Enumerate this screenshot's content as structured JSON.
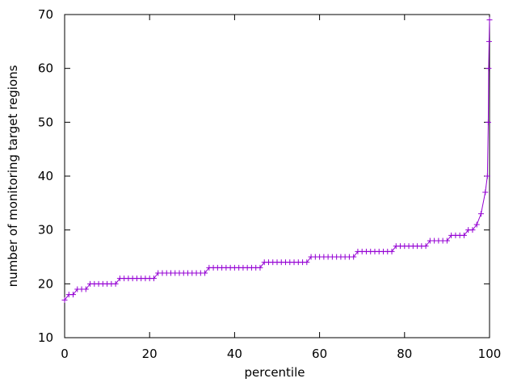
{
  "chart_data": {
    "type": "linepoints",
    "xlabel": "percentile",
    "ylabel": "number of monitoring target regions",
    "color": "#9400d3",
    "xlim": [
      0,
      100
    ],
    "xticks": [
      0,
      20,
      40,
      60,
      80,
      100
    ],
    "ylim": [
      10,
      70
    ],
    "yticks": [
      10,
      20,
      30,
      40,
      50,
      60,
      70
    ],
    "grid": false,
    "x": [
      0,
      1,
      2,
      3,
      4,
      5,
      6,
      7,
      8,
      9,
      10,
      11,
      12,
      13,
      14,
      15,
      16,
      17,
      18,
      19,
      20,
      21,
      22,
      23,
      24,
      25,
      26,
      27,
      28,
      29,
      30,
      31,
      32,
      33,
      34,
      35,
      36,
      37,
      38,
      39,
      40,
      41,
      42,
      43,
      44,
      45,
      46,
      47,
      48,
      49,
      50,
      51,
      52,
      53,
      54,
      55,
      56,
      57,
      58,
      59,
      60,
      61,
      62,
      63,
      64,
      65,
      66,
      67,
      68,
      69,
      70,
      71,
      72,
      73,
      74,
      75,
      76,
      77,
      78,
      79,
      80,
      81,
      82,
      83,
      84,
      85,
      86,
      87,
      88,
      89,
      90,
      91,
      92,
      93,
      94,
      95,
      96,
      97,
      98,
      99,
      99.5,
      99.7,
      99.8,
      99.9,
      100
    ],
    "values": [
      17,
      18,
      18,
      19,
      19,
      19,
      20,
      20,
      20,
      20,
      20,
      20,
      20,
      21,
      21,
      21,
      21,
      21,
      21,
      21,
      21,
      21,
      22,
      22,
      22,
      22,
      22,
      22,
      22,
      22,
      22,
      22,
      22,
      22,
      23,
      23,
      23,
      23,
      23,
      23,
      23,
      23,
      23,
      23,
      23,
      23,
      23,
      24,
      24,
      24,
      24,
      24,
      24,
      24,
      24,
      24,
      24,
      24,
      25,
      25,
      25,
      25,
      25,
      25,
      25,
      25,
      25,
      25,
      25,
      26,
      26,
      26,
      26,
      26,
      26,
      26,
      26,
      26,
      27,
      27,
      27,
      27,
      27,
      27,
      27,
      27,
      28,
      28,
      28,
      28,
      28,
      29,
      29,
      29,
      29,
      30,
      30,
      31,
      33,
      37,
      40,
      50,
      60,
      65,
      69
    ]
  }
}
